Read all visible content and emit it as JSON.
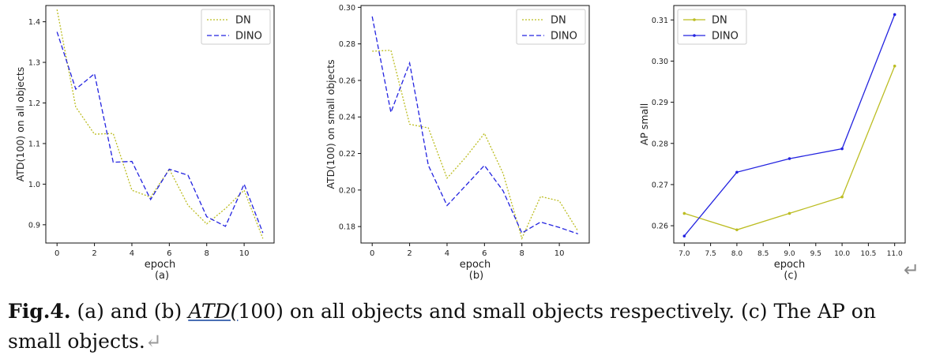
{
  "chart_data": [
    {
      "type": "line",
      "panel": "(a)",
      "xlabel": "epoch",
      "ylabel": "ATD(100) on all objects",
      "xlim": [
        -0.6,
        11.6
      ],
      "ylim": [
        0.855,
        1.44
      ],
      "xticks": [
        0,
        2,
        4,
        6,
        8,
        10
      ],
      "xtick_labels": [
        "0",
        "2",
        "4",
        "6",
        "8",
        "10"
      ],
      "yticks": [
        0.9,
        1.0,
        1.1,
        1.2,
        1.3,
        1.4
      ],
      "ytick_labels": [
        "0.9",
        "1.0",
        "1.1",
        "1.2",
        "1.3",
        "1.4"
      ],
      "legend_position": "top-right",
      "series": [
        {
          "name": "DN",
          "color": "#bcbd22",
          "dash": "dotted",
          "marker": false,
          "x": [
            0,
            1,
            2,
            3,
            4,
            5,
            6,
            7,
            8,
            9,
            10,
            11
          ],
          "y": [
            1.43,
            1.19,
            1.123,
            1.125,
            0.985,
            0.968,
            1.037,
            0.948,
            0.902,
            0.94,
            0.985,
            0.866
          ]
        },
        {
          "name": "DINO",
          "color": "#2323e0",
          "dash": "dashed",
          "marker": false,
          "x": [
            0,
            1,
            2,
            3,
            4,
            5,
            6,
            7,
            8,
            9,
            10,
            11
          ],
          "y": [
            1.375,
            1.234,
            1.272,
            1.054,
            1.056,
            0.962,
            1.037,
            1.022,
            0.92,
            0.896,
            1.0,
            0.88
          ]
        }
      ]
    },
    {
      "type": "line",
      "panel": "(b)",
      "xlabel": "epoch",
      "ylabel": "ATD(100) on small objects",
      "xlim": [
        -0.6,
        11.6
      ],
      "ylim": [
        0.171,
        0.301
      ],
      "xticks": [
        0,
        2,
        4,
        6,
        8,
        10
      ],
      "xtick_labels": [
        "0",
        "2",
        "4",
        "6",
        "8",
        "10"
      ],
      "yticks": [
        0.18,
        0.2,
        0.22,
        0.24,
        0.26,
        0.28,
        0.3
      ],
      "ytick_labels": [
        "0.18",
        "0.20",
        "0.22",
        "0.24",
        "0.26",
        "0.28",
        "0.30"
      ],
      "legend_position": "top-right",
      "series": [
        {
          "name": "DN",
          "color": "#bcbd22",
          "dash": "dotted",
          "marker": false,
          "x": [
            0,
            1,
            2,
            3,
            4,
            5,
            6,
            7,
            8,
            9,
            10,
            11
          ],
          "y": [
            0.276,
            0.2765,
            0.236,
            0.234,
            0.2065,
            0.218,
            0.231,
            0.209,
            0.1735,
            0.1965,
            0.194,
            0.1775
          ]
        },
        {
          "name": "DINO",
          "color": "#2323e0",
          "dash": "dashed",
          "marker": false,
          "x": [
            0,
            1,
            2,
            3,
            4,
            5,
            6,
            7,
            8,
            9,
            10,
            11
          ],
          "y": [
            0.295,
            0.2425,
            0.2695,
            0.2135,
            0.1915,
            0.2025,
            0.2135,
            0.1995,
            0.1765,
            0.1825,
            0.1795,
            0.176
          ]
        }
      ]
    },
    {
      "type": "line",
      "panel": "(c)",
      "xlabel": "epoch",
      "ylabel": "AP small",
      "xlim": [
        6.8,
        11.2
      ],
      "ylim": [
        0.2558,
        0.3135
      ],
      "xticks": [
        7.0,
        7.5,
        8.0,
        8.5,
        9.0,
        9.5,
        10.0,
        10.5,
        11.0
      ],
      "xtick_labels": [
        "7.0",
        "7.5",
        "8.0",
        "8.5",
        "9.0",
        "9.5",
        "10.0",
        "10.5",
        "11.0"
      ],
      "yticks": [
        0.26,
        0.27,
        0.28,
        0.29,
        0.3,
        0.31
      ],
      "ytick_labels": [
        "0.26",
        "0.27",
        "0.28",
        "0.29",
        "0.30",
        "0.31"
      ],
      "legend_position": "top-left",
      "series": [
        {
          "name": "DN",
          "color": "#bcbd22",
          "dash": "solid",
          "marker": true,
          "x": [
            7,
            8,
            9,
            10,
            11
          ],
          "y": [
            0.263,
            0.259,
            0.263,
            0.267,
            0.2988
          ]
        },
        {
          "name": "DINO",
          "color": "#2323e0",
          "dash": "solid",
          "marker": true,
          "x": [
            7,
            8,
            9,
            10,
            11
          ],
          "y": [
            0.2575,
            0.273,
            0.2763,
            0.2787,
            0.3113
          ]
        }
      ]
    }
  ],
  "caption": {
    "label": "Fig.4.",
    "part1": " (a) and (b) ",
    "italic": "ATD(",
    "part2": "100) on all objects and small objects respectively. (c) The AP on small objects.",
    "para_mark": "↵"
  },
  "page_para_mark": "↵"
}
